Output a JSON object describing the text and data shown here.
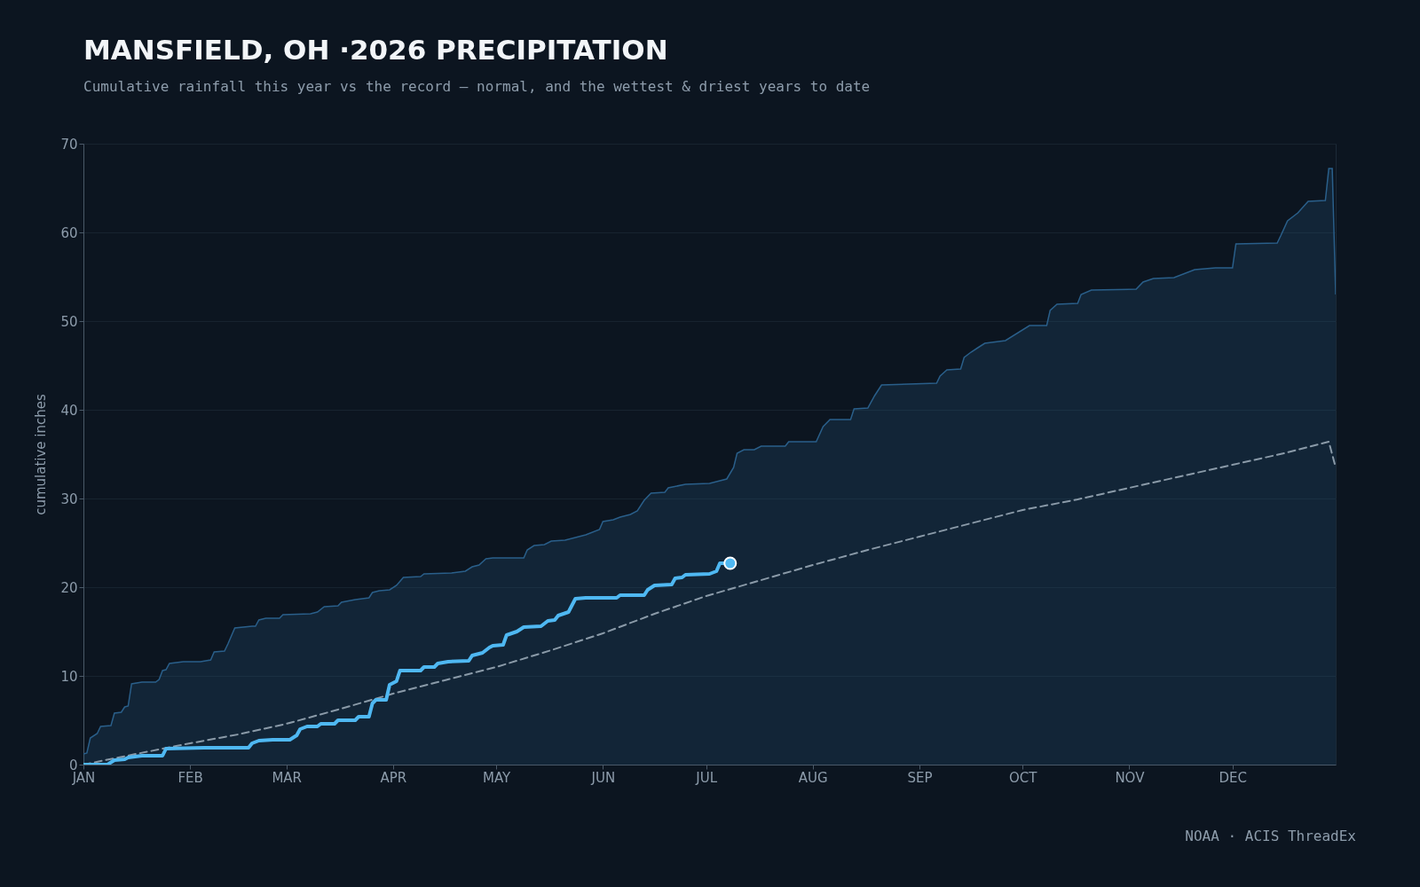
{
  "chart_data": {
    "type": "line",
    "title": "MANSFIELD, OH ·2026 PRECIPITATION",
    "subtitle": "Cumulative rainfall this year vs the record — normal, and the wettest & driest years to date",
    "ylabel": "cumulative inches",
    "annotations": [
      "NOAA · ACIS ThreadEx"
    ],
    "xlim": [
      "--01-01",
      "--12-31"
    ],
    "xticks": [
      {
        "value": "--01-01",
        "label": "JAN"
      },
      {
        "value": "--02-01",
        "label": "FEB"
      },
      {
        "value": "--03-01",
        "label": "MAR"
      },
      {
        "value": "--04-01",
        "label": "APR"
      },
      {
        "value": "--05-01",
        "label": "MAY"
      },
      {
        "value": "--06-01",
        "label": "JUN"
      },
      {
        "value": "--07-01",
        "label": "JUL"
      },
      {
        "value": "--08-01",
        "label": "AUG"
      },
      {
        "value": "--09-01",
        "label": "SEP"
      },
      {
        "value": "--10-01",
        "label": "OCT"
      },
      {
        "value": "--11-01",
        "label": "NOV"
      },
      {
        "value": "--12-01",
        "label": "DEC"
      }
    ],
    "ylim": [
      0,
      70
    ],
    "yticks": [
      0,
      10,
      20,
      30,
      40,
      50,
      60,
      70
    ],
    "grid": "y",
    "series": [
      {
        "type": "area",
        "color": "#2a5f8a",
        "x": [
          "--01-01",
          "--01-02",
          "--01-03",
          "--01-05",
          "--01-06",
          "--01-09",
          "--01-10",
          "--01-12",
          "--01-13",
          "--01-14",
          "--01-15",
          "--01-18",
          "--01-22",
          "--01-23",
          "--01-24",
          "--01-25",
          "--01-26",
          "--01-30",
          "--02-04",
          "--02-07",
          "--02-08",
          "--02-11",
          "--02-12",
          "--02-14",
          "--02-19",
          "--02-20",
          "--02-21",
          "--02-23",
          "--02-27",
          "--02-28",
          "--03-08",
          "--03-10",
          "--03-12",
          "--03-16",
          "--03-17",
          "--03-21",
          "--03-25",
          "--03-26",
          "--03-28",
          "--03-31",
          "--04-02",
          "--04-04",
          "--04-09",
          "--04-10",
          "--04-18",
          "--04-22",
          "--04-24",
          "--04-26",
          "--04-28",
          "--04-30",
          "--05-09",
          "--05-10",
          "--05-12",
          "--05-15",
          "--05-17",
          "--05-21",
          "--05-24",
          "--05-27",
          "--05-31",
          "--06-01",
          "--06-04",
          "--06-06",
          "--06-09",
          "--06-11",
          "--06-13",
          "--06-15",
          "--06-19",
          "--06-20",
          "--06-25",
          "--07-02",
          "--07-04",
          "--07-07",
          "--07-09",
          "--07-10",
          "--07-12",
          "--07-15",
          "--07-17",
          "--07-24",
          "--07-25",
          "--08-02",
          "--08-04",
          "--08-06",
          "--08-12",
          "--08-13",
          "--08-17",
          "--08-19",
          "--08-21",
          "--09-06",
          "--09-07",
          "--09-09",
          "--09-13",
          "--09-14",
          "--09-16",
          "--09-18",
          "--09-20",
          "--09-26",
          "--10-03",
          "--10-08",
          "--10-09",
          "--10-11",
          "--10-17",
          "--10-18",
          "--10-21",
          "--11-03",
          "--11-05",
          "--11-08",
          "--11-14",
          "--11-20",
          "--11-26",
          "--12-01",
          "--12-02",
          "--12-14",
          "--12-15",
          "--12-17",
          "--12-20",
          "--12-23",
          "--12-28",
          "--12-29",
          "--12-30",
          "--12-31"
        ],
        "values": [
          1.2,
          1.3,
          3,
          3.5,
          4.3,
          4.4,
          5.8,
          5.9,
          6.5,
          6.6,
          9.1,
          9.3,
          9.3,
          9.6,
          10.6,
          10.7,
          11.4,
          11.6,
          11.6,
          11.8,
          12.7,
          12.8,
          13.6,
          15.4,
          15.6,
          15.6,
          16.3,
          16.5,
          16.5,
          16.9,
          17.0,
          17.2,
          17.8,
          17.9,
          18.3,
          18.6,
          18.8,
          19.4,
          19.6,
          19.7,
          20.2,
          21.1,
          21.2,
          21.5,
          21.6,
          21.8,
          22.3,
          22.5,
          23.2,
          23.3,
          23.3,
          24.2,
          24.7,
          24.8,
          25.2,
          25.3,
          25.6,
          25.9,
          26.5,
          27.4,
          27.6,
          27.9,
          28.2,
          28.6,
          29.8,
          30.6,
          30.7,
          31.2,
          31.6,
          31.7,
          31.9,
          32.2,
          33.5,
          35.1,
          35.5,
          35.5,
          35.9,
          35.9,
          36.4,
          36.4,
          38.1,
          38.9,
          38.9,
          40.1,
          40.2,
          41.6,
          42.8,
          43.0,
          43.8,
          44.5,
          44.6,
          45.9,
          46.5,
          47.0,
          47.5,
          47.8,
          49.5,
          49.5,
          51.2,
          51.9,
          52.0,
          53.0,
          53.5,
          53.6,
          54.4,
          54.8,
          54.9,
          55.8,
          56.0,
          56.0,
          58.7,
          58.8,
          59.6,
          61.3,
          62.2,
          63.5,
          63.6,
          67.2,
          67.2,
          53.0
        ]
      },
      {
        "color": "#8a9aa8",
        "line_style": "dashed",
        "x": [
          "--01-01",
          "--01-15",
          "--02-01",
          "--02-15",
          "--03-01",
          "--03-16",
          "--04-01",
          "--04-16",
          "--05-01",
          "--05-17",
          "--06-01",
          "--06-16",
          "--07-01",
          "--07-17",
          "--08-01",
          "--08-17",
          "--09-01",
          "--09-16",
          "--10-01",
          "--10-17",
          "--11-01",
          "--11-16",
          "--12-01",
          "--12-16",
          "--12-29",
          "--12-31"
        ],
        "values": [
          0,
          1.1,
          2.4,
          3.4,
          4.6,
          6.2,
          8.0,
          9.5,
          11.0,
          12.9,
          14.8,
          17.0,
          19.0,
          20.8,
          22.5,
          24.2,
          25.7,
          27.2,
          28.7,
          29.9,
          31.2,
          32.5,
          33.8,
          35.1,
          36.4,
          33.5
        ]
      },
      {
        "color": "#4fb8f2",
        "line_style": "solid",
        "x": [
          "--01-01",
          "--01-08",
          "--01-10",
          "--01-13",
          "--01-14",
          "--01-18",
          "--01-24",
          "--01-25",
          "--02-05",
          "--02-18",
          "--02-19",
          "--02-21",
          "--02-25",
          "--03-02",
          "--03-04",
          "--03-05",
          "--03-07",
          "--03-10",
          "--03-11",
          "--03-15",
          "--03-16",
          "--03-21",
          "--03-22",
          "--03-25",
          "--03-26",
          "--03-27",
          "--03-30",
          "--03-31",
          "--04-02",
          "--04-03",
          "--04-09",
          "--04-10",
          "--04-13",
          "--04-14",
          "--04-17",
          "--04-23",
          "--04-24",
          "--04-27",
          "--04-29",
          "--04-30",
          "--05-03",
          "--05-04",
          "--05-07",
          "--05-09",
          "--05-14",
          "--05-16",
          "--05-18",
          "--05-19",
          "--05-22",
          "--05-24",
          "--05-27",
          "--06-05",
          "--06-06",
          "--06-13",
          "--06-14",
          "--06-16",
          "--06-21",
          "--06-22",
          "--06-24",
          "--06-25",
          "--07-02",
          "--07-04",
          "--07-05",
          "--07-08"
        ],
        "values": [
          0,
          0,
          0.5,
          0.6,
          0.8,
          1.0,
          1.0,
          1.8,
          1.9,
          1.9,
          2.4,
          2.7,
          2.8,
          2.8,
          3.3,
          4.0,
          4.3,
          4.3,
          4.6,
          4.6,
          5.0,
          5.0,
          5.4,
          5.4,
          6.9,
          7.3,
          7.3,
          9.0,
          9.4,
          10.6,
          10.6,
          11.0,
          11.0,
          11.4,
          11.6,
          11.7,
          12.3,
          12.6,
          13.2,
          13.4,
          13.5,
          14.6,
          15.0,
          15.5,
          15.6,
          16.2,
          16.3,
          16.8,
          17.2,
          18.7,
          18.8,
          18.8,
          19.1,
          19.1,
          19.7,
          20.2,
          20.3,
          21.0,
          21.1,
          21.4,
          21.5,
          21.8,
          22.7,
          22.7
        ]
      },
      {
        "type": "scatter",
        "color": "#4fb8f2",
        "marker": "circle",
        "x": [
          "--07-08"
        ],
        "values": [
          22.7
        ]
      }
    ]
  }
}
